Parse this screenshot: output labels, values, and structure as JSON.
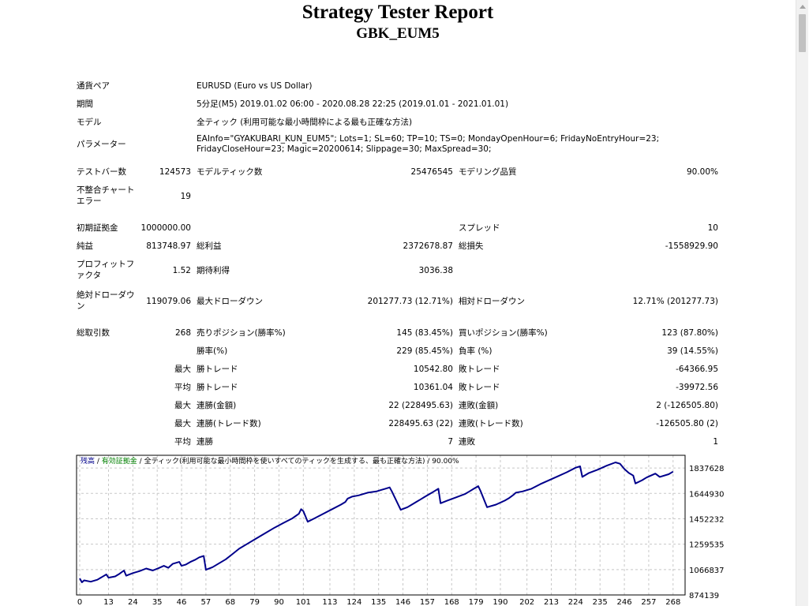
{
  "report": {
    "title": "Strategy Tester Report",
    "symbol": "GBK_EUM5"
  },
  "settings": {
    "pair_label": "通貨ペア",
    "pair_value": "EURUSD (Euro vs US Dollar)",
    "period_label": "期間",
    "period_value": "5分足(M5) 2019.01.02 06:00 - 2020.08.28 22:25 (2019.01.01 - 2021.01.01)",
    "model_label": "モデル",
    "model_value": "全ティック (利用可能な最小時間枠による最も正確な方法)",
    "params_label": "パラメーター",
    "params_value": "EAInfo=\"GYAKUBARI_KUN_EUM5\"; Lots=1; SL=60; TP=10; TS=0; MondayOpenHour=6; FridayNoEntryHour=23; FridayCloseHour=23; Magic=20200614; Slippage=30; MaxSpread=30;"
  },
  "stats": {
    "bars_label": "テストバー数",
    "bars_value": "124573",
    "ticks_label": "モデルティック数",
    "ticks_value": "25476545",
    "quality_label": "モデリング品質",
    "quality_value": "90.00%",
    "mismatch_label": "不整合チャートエラー",
    "mismatch_value": "19",
    "deposit_label": "初期証拠金",
    "deposit_value": "1000000.00",
    "spread_label": "スプレッド",
    "spread_value": "10",
    "net_profit_label": "純益",
    "net_profit_value": "813748.97",
    "gross_profit_label": "総利益",
    "gross_profit_value": "2372678.87",
    "gross_loss_label": "総損失",
    "gross_loss_value": "-1558929.90",
    "profit_factor_label": "プロフィットファクタ",
    "profit_factor_value": "1.52",
    "expected_payoff_label": "期待利得",
    "expected_payoff_value": "3036.38",
    "abs_dd_label": "絶対ドローダウン",
    "abs_dd_value": "119079.06",
    "max_dd_label": "最大ドローダウン",
    "max_dd_value": "201277.73 (12.71%)",
    "rel_dd_label": "相対ドローダウン",
    "rel_dd_value": "12.71% (201277.73)",
    "total_trades_label": "総取引数",
    "total_trades_value": "268",
    "short_label": "売りポジション(勝率%)",
    "short_value": "145 (83.45%)",
    "long_label": "買いポジション(勝率%)",
    "long_value": "123 (87.80%)",
    "win_rate_label": "勝率(%)",
    "win_rate_value": "229 (85.45%)",
    "loss_rate_label": "負率 (%)",
    "loss_rate_value": "39 (14.55%)",
    "largest": "最大",
    "largest_win_label": "勝トレード",
    "largest_win_value": "10542.80",
    "largest_loss_label": "敗トレード",
    "largest_loss_value": "-64366.95",
    "average": "平均",
    "avg_win_label": "勝トレード",
    "avg_win_value": "10361.04",
    "avg_loss_label": "敗トレード",
    "avg_loss_value": "-39972.56",
    "max_consec_wins_label": "連勝(金額)",
    "max_consec_wins_value": "22 (228495.63)",
    "max_consec_losses_label": "連敗(金額)",
    "max_consec_losses_value": "2 (-126505.80)",
    "max_consec_profit_label": "連勝(トレード数)",
    "max_consec_profit_value": "228495.63 (22)",
    "max_consec_loss_label": "連敗(トレード数)",
    "max_consec_loss_value": "-126505.80 (2)",
    "avg_consec_wins_label": "連勝",
    "avg_consec_wins_value": "7",
    "avg_consec_losses_label": "連敗",
    "avg_consec_losses_value": "1"
  },
  "chart_data": {
    "type": "line",
    "legend": {
      "balance": "残高",
      "sep1": " / ",
      "equity": "有効証拠金",
      "sep2": " / ",
      "model": "全ティック(利用可能な最小時間枠を使いすべてのティックを生成する、最も正確な方法)",
      "sep3": " / ",
      "quality": "90.00%"
    },
    "x_ticks": [
      "0",
      "13",
      "24",
      "35",
      "46",
      "57",
      "68",
      "79",
      "90",
      "101",
      "113",
      "124",
      "135",
      "146",
      "157",
      "168",
      "179",
      "190",
      "202",
      "213",
      "224",
      "235",
      "246",
      "257",
      "268"
    ],
    "y_ticks": [
      "1837628",
      "1644930",
      "1452232",
      "1259535",
      "1066837",
      "874139"
    ],
    "ylim": [
      874139,
      1934000
    ],
    "xlim": [
      0,
      272
    ],
    "line_color": "#00008b",
    "series": [
      {
        "x": [
          0,
          1,
          2,
          5,
          8,
          10,
          12,
          13,
          16,
          18,
          20,
          21,
          24,
          27,
          30,
          33,
          36,
          38,
          40,
          42,
          45,
          46,
          48,
          50,
          52,
          54,
          56,
          57,
          60,
          63,
          66,
          69,
          72,
          76,
          80,
          84,
          88,
          92,
          96,
          99,
          100,
          101,
          103,
          106,
          110,
          114,
          118,
          120,
          121,
          123,
          126,
          130,
          134,
          136,
          138,
          140,
          141,
          145,
          148,
          150,
          152,
          154,
          156,
          158,
          160,
          162,
          163,
          166,
          170,
          174,
          176,
          178,
          180,
          181,
          184,
          188,
          192,
          194,
          196,
          197,
          200,
          204,
          208,
          212,
          216,
          220,
          224,
          226,
          227,
          230,
          234,
          238,
          242,
          244,
          245,
          246,
          248,
          250,
          251,
          254,
          256,
          258,
          260,
          262,
          266,
          268
        ],
        "y": [
          1000000,
          970000,
          985000,
          975000,
          990000,
          1010000,
          1030000,
          1005000,
          1015000,
          1035000,
          1060000,
          1020000,
          1040000,
          1055000,
          1075000,
          1060000,
          1080000,
          1095000,
          1080000,
          1110000,
          1125000,
          1095000,
          1105000,
          1125000,
          1140000,
          1160000,
          1170000,
          1065000,
          1085000,
          1115000,
          1145000,
          1185000,
          1225000,
          1265000,
          1305000,
          1345000,
          1385000,
          1420000,
          1455000,
          1490000,
          1525000,
          1510000,
          1430000,
          1455000,
          1490000,
          1525000,
          1560000,
          1580000,
          1605000,
          1620000,
          1630000,
          1650000,
          1660000,
          1670000,
          1680000,
          1690000,
          1660000,
          1520000,
          1540000,
          1560000,
          1580000,
          1600000,
          1620000,
          1640000,
          1660000,
          1680000,
          1570000,
          1590000,
          1615000,
          1640000,
          1660000,
          1680000,
          1700000,
          1665000,
          1540000,
          1560000,
          1590000,
          1610000,
          1635000,
          1650000,
          1660000,
          1680000,
          1715000,
          1745000,
          1775000,
          1805000,
          1840000,
          1850000,
          1770000,
          1800000,
          1825000,
          1855000,
          1880000,
          1870000,
          1850000,
          1830000,
          1800000,
          1780000,
          1720000,
          1745000,
          1765000,
          1780000,
          1795000,
          1770000,
          1790000,
          1810000
        ]
      }
    ]
  }
}
